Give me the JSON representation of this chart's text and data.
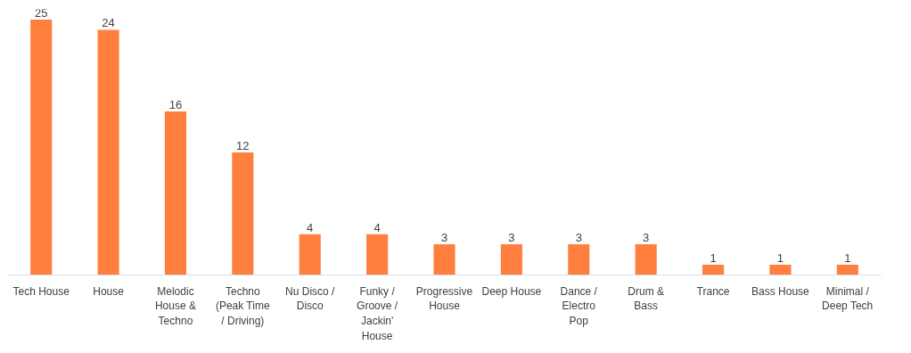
{
  "chart_data": {
    "type": "bar",
    "categories": [
      "Tech House",
      "House",
      "Melodic House & Techno",
      "Techno (Peak Time / Driving)",
      "Nu Disco / Disco",
      "Funky / Groove / Jackin' House",
      "Progressive House",
      "Deep House",
      "Dance / Electro Pop",
      "Drum & Bass",
      "Trance",
      "Bass House",
      "Minimal / Deep Tech"
    ],
    "values": [
      25,
      24,
      16,
      12,
      4,
      4,
      3,
      3,
      3,
      3,
      1,
      1,
      1
    ],
    "color": "#ff7f3f",
    "data_labels": true
  }
}
